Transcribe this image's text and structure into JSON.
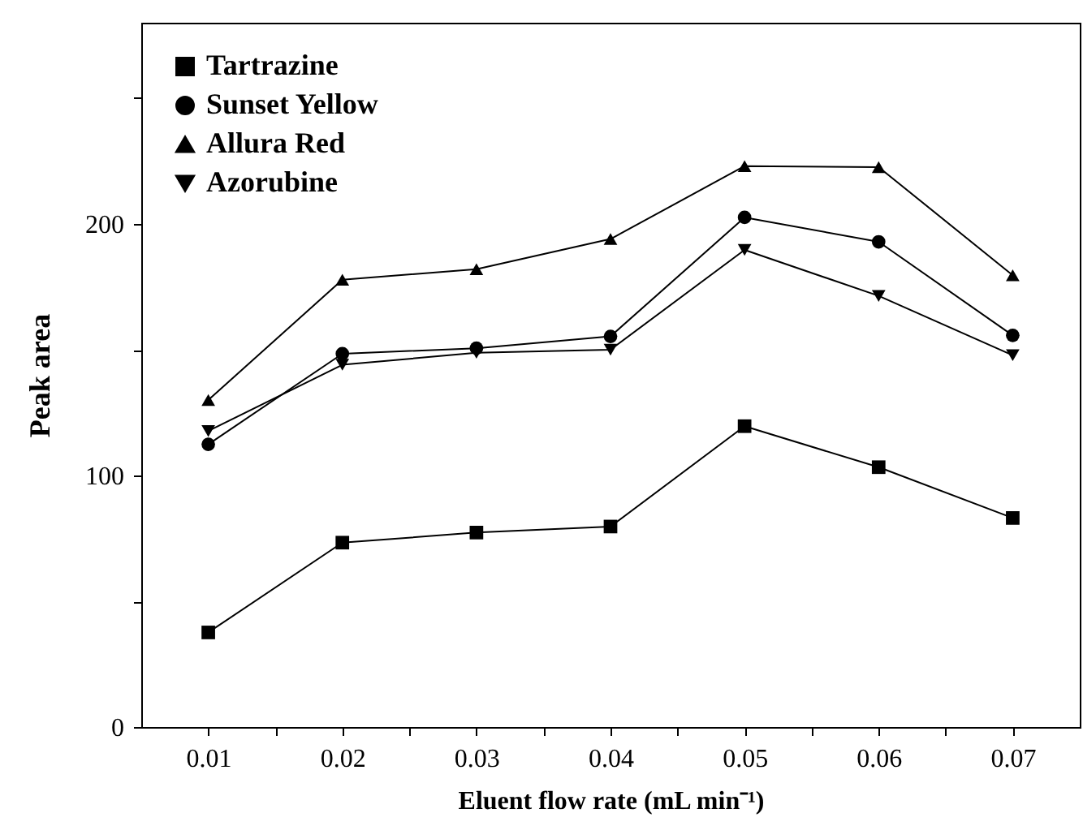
{
  "chart_data": {
    "type": "line",
    "xlabel": "Eluent flow rate (mL min⁻¹)",
    "ylabel": "Peak area",
    "x": [
      0.01,
      0.02,
      0.03,
      0.04,
      0.05,
      0.06,
      0.07
    ],
    "series": [
      {
        "name": "Tartrazine",
        "color": "#000000",
        "marker": "square",
        "values": [
          37.6,
          73.3,
          77.3,
          79.7,
          119.6,
          103.3,
          83.1
        ]
      },
      {
        "name": "Sunset Yellow",
        "color": "#000000",
        "marker": "circle",
        "values": [
          112.4,
          148.4,
          150.6,
          155.3,
          202.6,
          192.9,
          155.7
        ]
      },
      {
        "name": "Allura Red",
        "color": "#000000",
        "marker": "triangle",
        "values": [
          130,
          177.8,
          182,
          194,
          223,
          222.6,
          179.6
        ]
      },
      {
        "name": "Azorubine",
        "color": "#000000",
        "marker": "triangle-down",
        "values": [
          117.7,
          144,
          148.8,
          150,
          189.7,
          171.4,
          147.8
        ]
      }
    ],
    "xlim": [
      0.005,
      0.075
    ],
    "xticks": [
      0.01,
      {
        "value": 0.015,
        "label": null
      },
      0.02,
      {
        "value": 0.025,
        "label": null
      },
      0.03,
      {
        "value": 0.035,
        "label": null
      },
      0.04,
      {
        "value": 0.045,
        "label": null
      },
      0.05,
      {
        "value": 0.055,
        "label": null
      },
      0.06,
      {
        "value": 0.065,
        "label": null
      },
      0.07
    ],
    "ylim": [
      0,
      280
    ],
    "yticks": [
      0,
      {
        "value": 50,
        "label": null
      },
      100,
      {
        "value": 150,
        "label": null
      },
      200,
      {
        "value": 250,
        "label": null
      }
    ],
    "grid": false,
    "legend": "top left",
    "line_style": "solid"
  }
}
